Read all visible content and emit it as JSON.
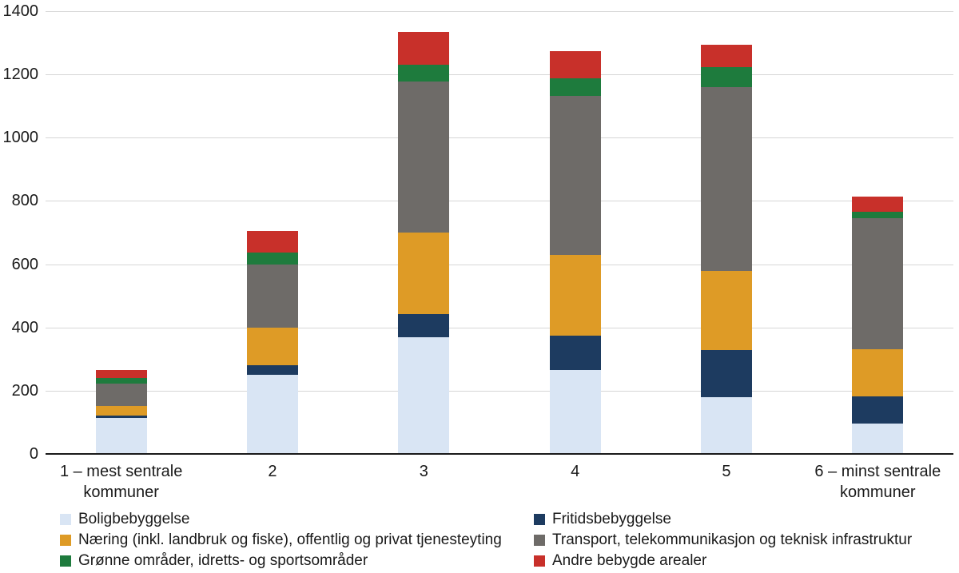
{
  "chart_data": {
    "type": "stacked-bar",
    "title": "",
    "xlabel": "",
    "ylabel": "",
    "categories": [
      "1 – mest sentrale kommuner",
      "2",
      "3",
      "4",
      "5",
      "6 – minst sentrale kommuner"
    ],
    "series": [
      {
        "name": "Boligbebyggelse",
        "color": "#d9e5f4",
        "values": [
          113,
          250,
          370,
          265,
          180,
          95
        ]
      },
      {
        "name": "Fritidsbebyggelse",
        "color": "#1d3b60",
        "values": [
          8,
          30,
          73,
          110,
          148,
          88
        ]
      },
      {
        "name": "Næring (inkl. landbruk og fiske), offentlig og privat tjenesteyting",
        "color": "#de9b26",
        "values": [
          30,
          120,
          257,
          255,
          250,
          147
        ]
      },
      {
        "name": "Transport, telekommunikasjon og teknisk infrastruktur",
        "color": "#6e6b68",
        "values": [
          72,
          200,
          477,
          502,
          582,
          415
        ]
      },
      {
        "name": "Grønne områder, idretts- og sportsområder",
        "color": "#1e7b3d",
        "values": [
          18,
          38,
          55,
          55,
          62,
          20
        ]
      },
      {
        "name": "Andre bebygde arealer",
        "color": "#c8302a",
        "values": [
          24,
          67,
          103,
          88,
          73,
          48
        ]
      }
    ],
    "ylim": [
      0,
      1400
    ],
    "yticks": [
      0,
      200,
      400,
      600,
      800,
      1000,
      1200,
      1400
    ],
    "grid": true,
    "legend_position": "bottom",
    "legend_columns": [
      [
        0,
        2,
        4
      ],
      [
        1,
        3,
        5
      ]
    ],
    "colors": {
      "gridline": "#d6d6d6",
      "axis_line": "#1a1a1a",
      "text": "#1a1a1a",
      "background": "#ffffff"
    }
  }
}
